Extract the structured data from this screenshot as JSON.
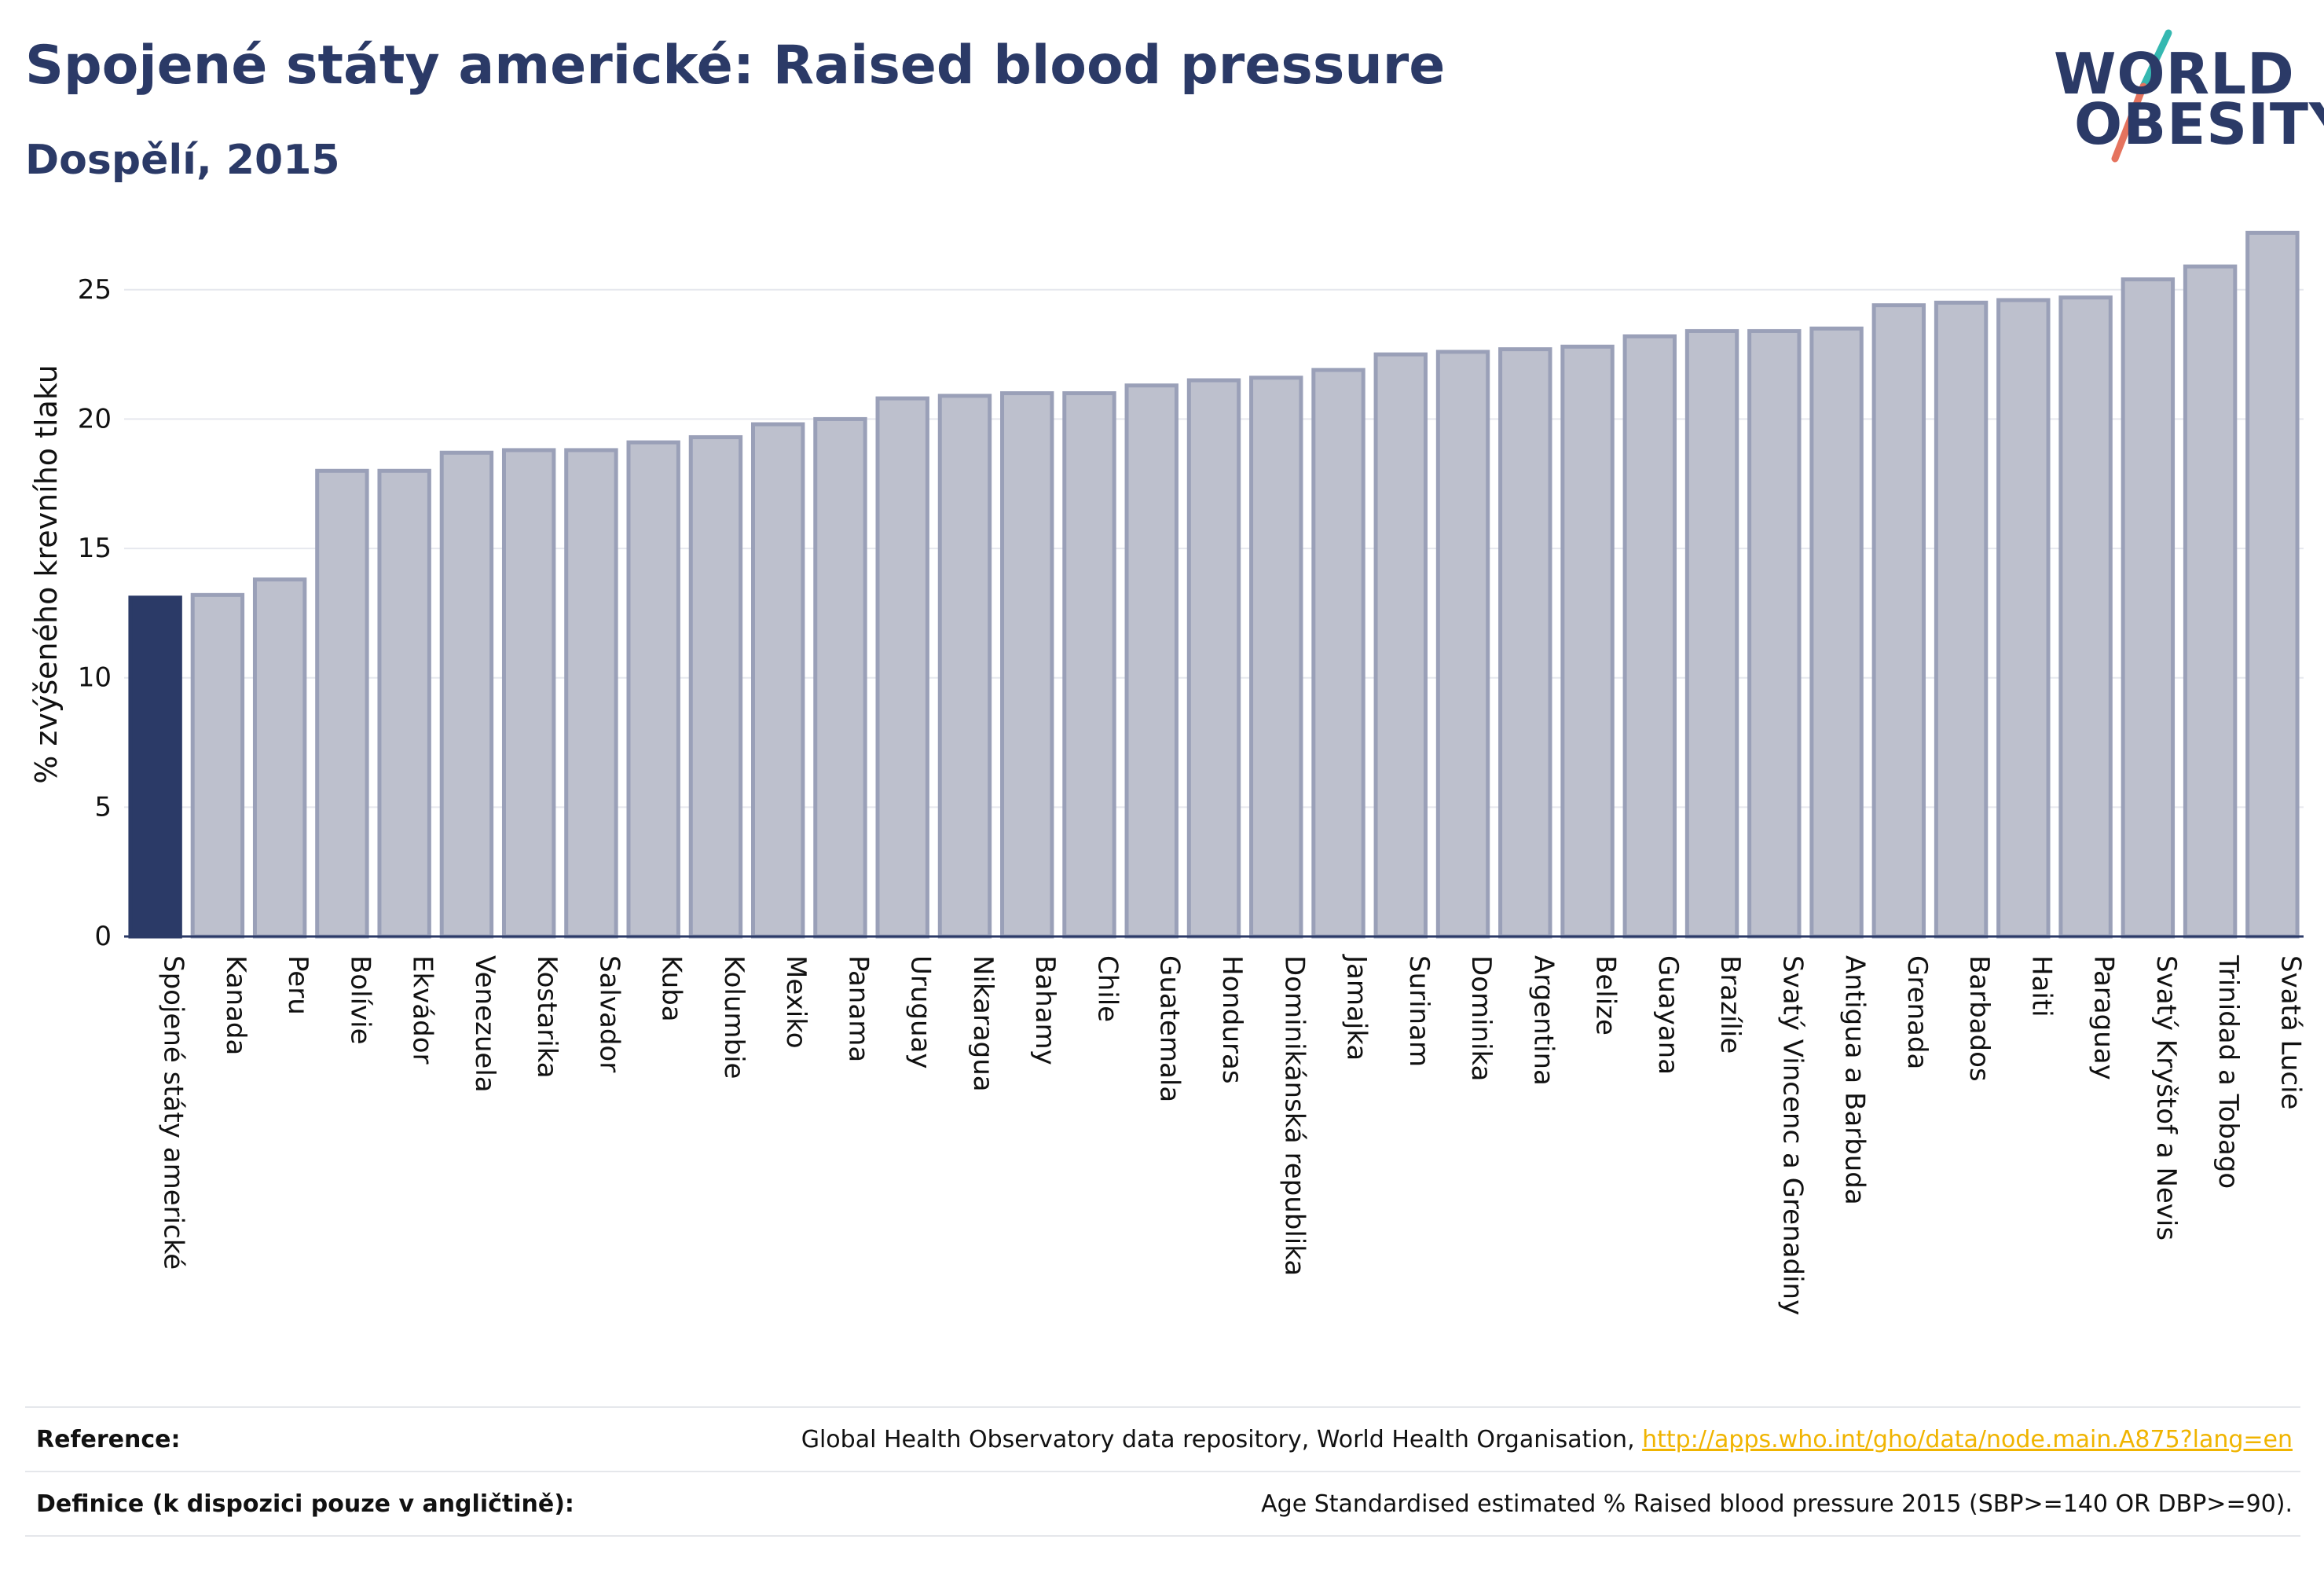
{
  "header": {
    "title": "Spojené státy americké: Raised blood pressure",
    "subtitle": "Dospělí, 2015"
  },
  "logo": {
    "line1": "WORLD",
    "line2": "OBESITY"
  },
  "colors": {
    "title": "#2b3a67",
    "highlight_bar": "#2b3a67",
    "other_bar_fill": "#bdc0cd",
    "other_bar_border": "#9aa0b8",
    "link": "#f0b400",
    "logo_slash_teal": "#35b8b1",
    "logo_slash_red": "#e5735e"
  },
  "chart_data": {
    "type": "bar",
    "ylabel": "% zvýšeného krevního tlaku",
    "xlabel": "",
    "ylim": [
      0,
      28
    ],
    "yticks": [
      0,
      5,
      10,
      15,
      20,
      25
    ],
    "grid": true,
    "highlight": "Spojené státy americké",
    "categories": [
      "Spojené státy americké",
      "Kanada",
      "Peru",
      "Bolívie",
      "Ekvádor",
      "Venezuela",
      "Kostarika",
      "Salvador",
      "Kuba",
      "Kolumbie",
      "Mexiko",
      "Panama",
      "Uruguay",
      "Nikaragua",
      "Bahamy",
      "Chile",
      "Guatemala",
      "Honduras",
      "Dominikánská republika",
      "Jamajka",
      "Surinam",
      "Dominika",
      "Argentina",
      "Belize",
      "Guayana",
      "Brazílie",
      "Svatý Vincenc a Grenadiny",
      "Antigua a Barbuda",
      "Grenada",
      "Barbados",
      "Haiti",
      "Paraguay",
      "Svatý Kryštof a Nevis",
      "Trinidad a Tobago",
      "Svatá Lucie"
    ],
    "values": [
      13.1,
      13.2,
      13.8,
      18.0,
      18.0,
      18.7,
      18.8,
      18.8,
      19.1,
      19.3,
      19.8,
      20.0,
      20.8,
      20.9,
      21.0,
      21.0,
      21.3,
      21.5,
      21.6,
      21.9,
      22.5,
      22.6,
      22.7,
      22.8,
      23.2,
      23.4,
      23.4,
      23.5,
      24.4,
      24.5,
      24.6,
      24.7,
      25.4,
      25.9,
      27.2
    ]
  },
  "footer": {
    "reference_label": "Reference:",
    "reference_text": "Global Health Observatory data repository, World Health Organisation, ",
    "reference_link": "http://apps.who.int/gho/data/node.main.A875?lang=en",
    "definition_label": "Definice (k dispozici pouze v angličtině):",
    "definition_text": "Age Standardised estimated % Raised blood pressure 2015 (SBP>=140 OR DBP>=90)."
  }
}
